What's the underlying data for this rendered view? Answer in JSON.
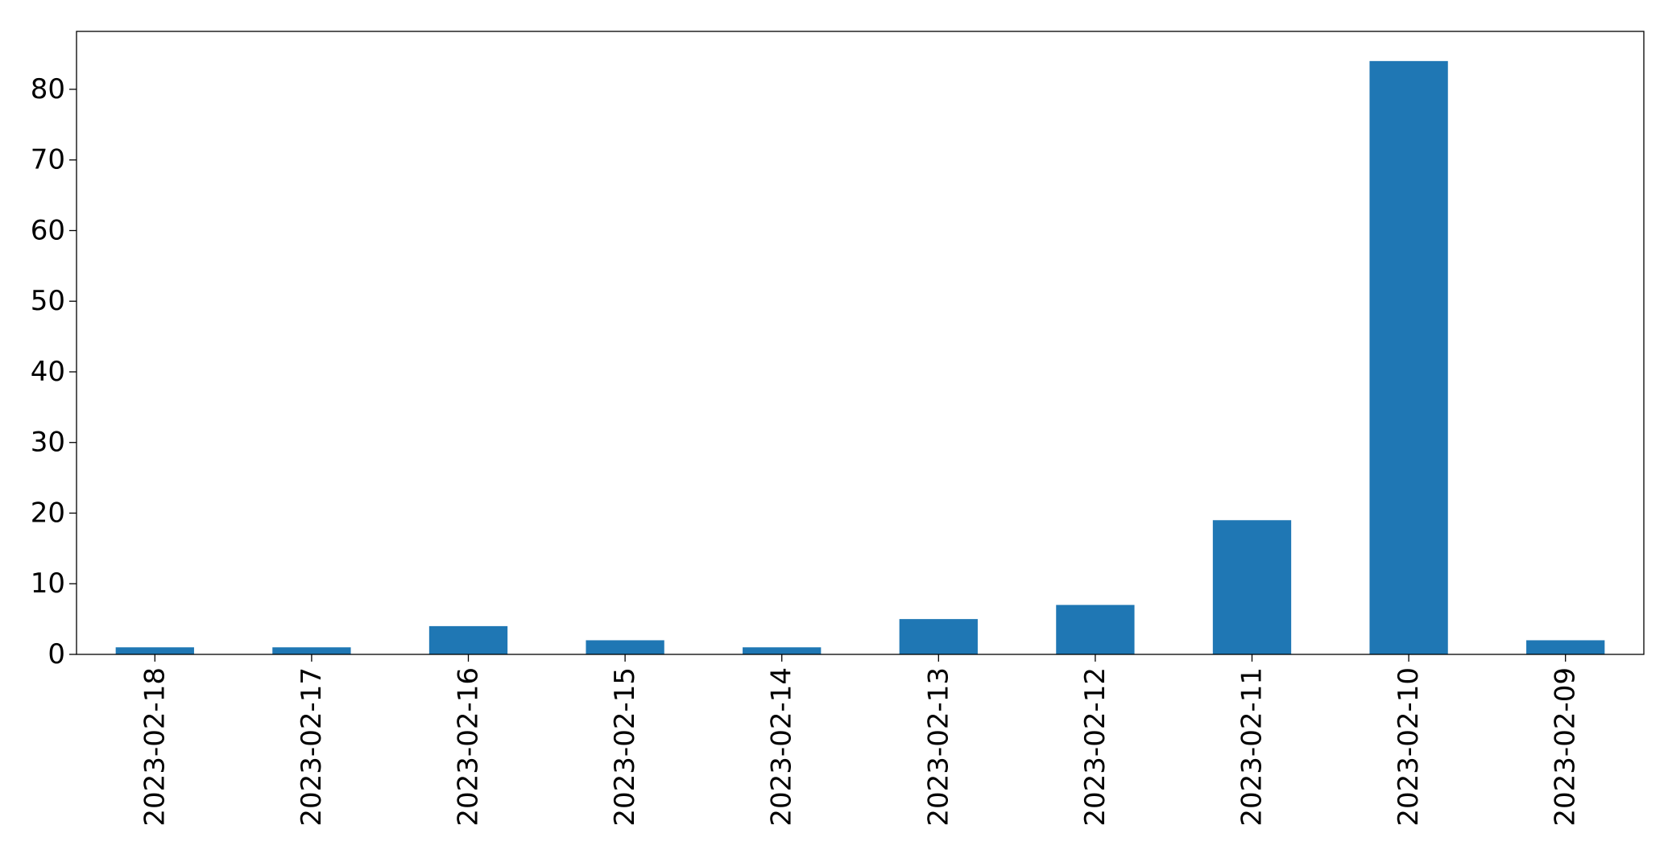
{
  "chart_data": {
    "type": "bar",
    "title": "",
    "xlabel": "",
    "ylabel": "",
    "categories": [
      "2023-02-18",
      "2023-02-17",
      "2023-02-16",
      "2023-02-15",
      "2023-02-14",
      "2023-02-13",
      "2023-02-12",
      "2023-02-11",
      "2023-02-10",
      "2023-02-09"
    ],
    "values": [
      1,
      1,
      4,
      2,
      1,
      5,
      7,
      19,
      84,
      2
    ],
    "ylim": [
      0,
      88.2
    ],
    "yticks": [
      0,
      10,
      20,
      30,
      40,
      50,
      60,
      70,
      80
    ],
    "grid": false,
    "legend": "none",
    "bar_color": "#1f77b4"
  }
}
